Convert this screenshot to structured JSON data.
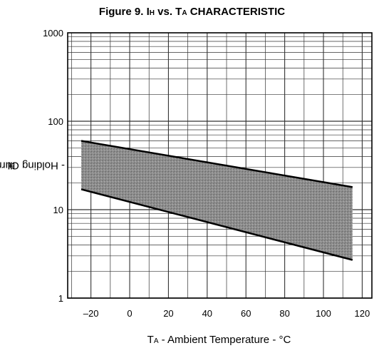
{
  "chart_data": {
    "type": "area",
    "title": {
      "prefix": "Figure 9.  I",
      "sub1": "H",
      "mid": " vs. T",
      "sub2": "A",
      "suffix": " CHARACTERISTIC"
    },
    "xlabel": {
      "main": "T",
      "sub": "A",
      "rest": " - Ambient Temperature - °C"
    },
    "ylabel": {
      "main": "I",
      "sub": "H",
      "rest": " - Holding Current - mA"
    },
    "x_ticks": [
      -20,
      0,
      20,
      40,
      60,
      80,
      100,
      120
    ],
    "y_ticks": [
      1,
      10,
      100,
      1000
    ],
    "xlim": [
      -32,
      125
    ],
    "ylim": [
      1,
      1000
    ],
    "yscale": "log",
    "grid": true,
    "band": {
      "upper": {
        "x": [
          -25,
          115
        ],
        "y": [
          60,
          18
        ]
      },
      "lower": {
        "x": [
          -25,
          115
        ],
        "y": [
          17,
          2.7
        ]
      },
      "color": "#9a9a9a"
    }
  }
}
